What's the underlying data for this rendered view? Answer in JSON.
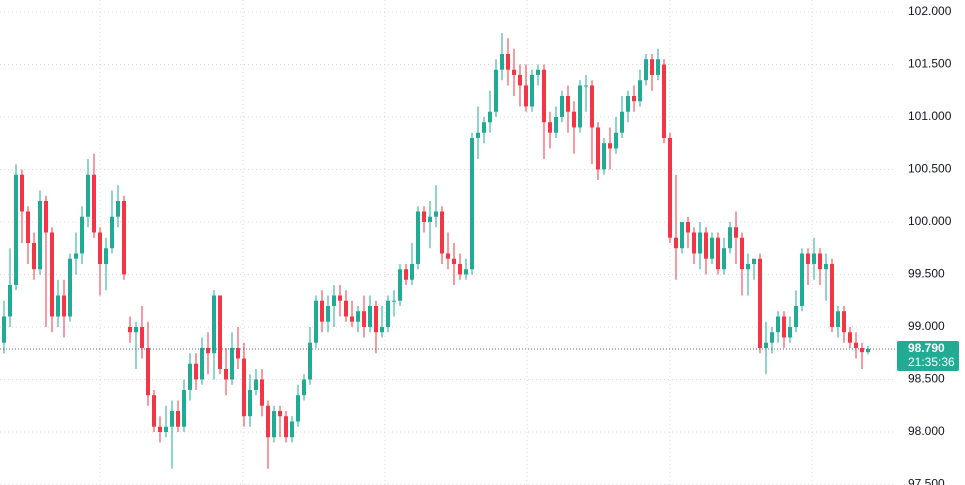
{
  "chart_data": {
    "type": "candlestick",
    "up_color": "#22ab94",
    "down_color": "#f23645",
    "grid": true,
    "ylim": [
      97.495,
      102.114
    ],
    "yticks": [
      {
        "value": 97.5,
        "label": "97.500"
      },
      {
        "value": 98,
        "label": "98.000"
      },
      {
        "value": 98.5,
        "label": "98.500"
      },
      {
        "value": 99,
        "label": "99.000"
      },
      {
        "value": 99.5,
        "label": "99.500"
      },
      {
        "value": 100,
        "label": "100.000"
      },
      {
        "value": 100.5,
        "label": "100.500"
      },
      {
        "value": 101,
        "label": "101.000"
      },
      {
        "value": 101.5,
        "label": "101.500"
      },
      {
        "value": 102,
        "label": "102.000"
      }
    ],
    "last_price": {
      "value": 98.79,
      "label": "98.790"
    },
    "countdown": "21:35:36",
    "open": [
      98.85,
      99.1,
      99.4,
      100.45,
      100.1,
      99.8,
      99.55,
      100.2,
      99.9,
      99.1,
      99.3,
      99.1,
      99.65,
      99.7,
      100.05,
      100.45,
      99.9,
      99.6,
      99.75,
      100.05,
      100.2,
      99.0,
      98.95,
      99.0,
      98.8,
      98.35,
      98.05,
      98.0,
      98.05,
      98.2,
      98.05,
      98.4,
      98.65,
      98.5,
      98.8,
      98.75,
      99.3,
      98.6,
      98.5,
      98.8,
      98.7,
      98.15,
      98.4,
      98.5,
      98.25,
      97.95,
      98.2,
      98.15,
      97.95,
      98.1,
      98.35,
      98.5,
      98.85,
      99.25,
      99.05,
      99.2,
      99.3,
      99.25,
      99.1,
      99.05,
      99.15,
      99.0,
      99.2,
      98.95,
      99.0,
      99.25,
      99.25,
      99.55,
      99.45,
      99.6,
      100.1,
      100.0,
      100.05,
      100.1,
      99.7,
      99.65,
      99.6,
      99.5,
      99.55,
      100.8,
      100.85,
      100.95,
      101.05,
      101.45,
      101.6,
      101.45,
      101.4,
      101.3,
      101.1,
      101.4,
      101.45,
      100.95,
      100.85,
      101.0,
      101.2,
      101.05,
      100.9,
      101.3,
      101.3,
      100.9,
      100.5,
      100.75,
      100.7,
      100.85,
      101.05,
      101.2,
      101.15,
      101.35,
      101.55,
      101.4,
      101.5,
      100.8,
      99.85,
      99.75,
      100.0,
      99.9,
      99.7,
      99.9,
      99.65,
      99.85,
      99.55,
      99.75,
      99.95,
      99.85,
      99.55,
      99.6,
      99.65,
      98.8,
      98.85,
      98.95,
      99.1,
      98.9,
      99.0,
      99.2,
      99.7,
      99.6,
      99.7,
      99.55,
      99.6,
      99.0,
      99.15,
      98.95,
      98.85,
      98.8,
      98.76
    ],
    "high": [
      99.25,
      99.75,
      100.55,
      100.5,
      100.15,
      99.9,
      100.3,
      100.25,
      99.95,
      99.45,
      99.45,
      99.7,
      99.9,
      100.15,
      100.6,
      100.65,
      99.95,
      99.85,
      100.3,
      100.35,
      100.25,
      99.1,
      99.05,
      99.2,
      99.05,
      98.4,
      98.15,
      98.25,
      98.3,
      98.3,
      98.5,
      98.75,
      98.75,
      98.9,
      98.95,
      99.35,
      99.3,
      98.8,
      98.95,
      99.0,
      98.85,
      98.55,
      98.6,
      98.6,
      98.3,
      98.25,
      98.25,
      98.2,
      98.15,
      98.45,
      98.55,
      99.0,
      99.3,
      99.35,
      99.3,
      99.4,
      99.4,
      99.35,
      99.25,
      99.2,
      99.3,
      99.3,
      99.25,
      99.2,
      99.3,
      99.35,
      99.6,
      99.6,
      99.8,
      100.15,
      100.15,
      100.2,
      100.35,
      100.15,
      99.9,
      99.8,
      99.7,
      99.65,
      100.85,
      101.1,
      101.0,
      101.25,
      101.55,
      101.8,
      101.75,
      101.65,
      101.5,
      101.5,
      101.45,
      101.5,
      101.5,
      101.05,
      101.1,
      101.25,
      101.3,
      101.15,
      101.35,
      101.4,
      101.35,
      100.95,
      100.8,
      100.9,
      101.0,
      101.2,
      101.25,
      101.3,
      101.45,
      101.6,
      101.6,
      101.65,
      101.55,
      100.85,
      100.45,
      100.0,
      100.05,
      99.95,
      100.0,
      99.95,
      99.9,
      99.9,
      99.85,
      100.0,
      100.1,
      99.9,
      99.7,
      99.65,
      99.7,
      99.05,
      99.0,
      99.15,
      99.15,
      99.1,
      99.35,
      99.75,
      99.75,
      99.85,
      99.75,
      99.7,
      99.65,
      99.2,
      99.2,
      99.0,
      98.95,
      98.85,
      98.82
    ],
    "low": [
      98.75,
      99.0,
      99.35,
      99.8,
      99.6,
      99.45,
      99.5,
      99.0,
      98.95,
      99.0,
      98.9,
      99.05,
      99.5,
      99.6,
      99.95,
      99.85,
      99.3,
      99.35,
      99.7,
      99.95,
      99.45,
      98.85,
      98.6,
      98.7,
      98.25,
      98.0,
      97.9,
      97.95,
      97.65,
      98.0,
      98.0,
      98.3,
      98.4,
      98.45,
      98.55,
      98.5,
      98.55,
      98.35,
      98.45,
      98.6,
      98.05,
      98.05,
      98.35,
      98.15,
      97.65,
      97.9,
      97.95,
      97.9,
      97.9,
      98.05,
      98.3,
      98.45,
      98.8,
      98.95,
      98.95,
      99.0,
      99.1,
      99.05,
      99.0,
      98.95,
      98.9,
      98.95,
      98.75,
      98.9,
      98.95,
      99.1,
      99.2,
      99.4,
      99.4,
      99.55,
      99.9,
      99.75,
      99.95,
      99.6,
      99.55,
      99.4,
      99.45,
      99.45,
      99.5,
      100.6,
      100.75,
      100.85,
      101.0,
      101.35,
      101.3,
      101.2,
      101.1,
      101.05,
      101.05,
      101.3,
      100.6,
      100.7,
      100.8,
      100.95,
      100.85,
      100.65,
      100.85,
      101.05,
      100.55,
      100.4,
      100.45,
      100.5,
      100.65,
      100.8,
      100.95,
      101.05,
      101.1,
      101.3,
      101.25,
      101.35,
      100.75,
      99.8,
      99.45,
      99.7,
      99.75,
      99.6,
      99.55,
      99.5,
      99.6,
      99.5,
      99.5,
      99.7,
      99.6,
      99.3,
      99.3,
      99.45,
      98.75,
      98.55,
      98.75,
      98.85,
      98.8,
      98.85,
      98.95,
      99.15,
      99.4,
      99.45,
      99.4,
      99.25,
      98.95,
      98.9,
      98.85,
      98.8,
      98.7,
      98.6,
      98.74
    ],
    "close": [
      99.1,
      99.4,
      100.45,
      100.1,
      99.8,
      99.55,
      100.2,
      99.9,
      99.1,
      99.3,
      99.1,
      99.65,
      99.7,
      100.05,
      100.45,
      99.9,
      99.6,
      99.75,
      100.05,
      100.2,
      99.5,
      98.95,
      99.0,
      98.8,
      98.35,
      98.05,
      98.0,
      98.05,
      98.2,
      98.05,
      98.4,
      98.65,
      98.5,
      98.8,
      98.75,
      99.3,
      98.6,
      98.5,
      98.8,
      98.7,
      98.15,
      98.4,
      98.5,
      98.25,
      97.95,
      98.2,
      98.15,
      97.95,
      98.1,
      98.35,
      98.5,
      98.85,
      99.25,
      99.05,
      99.2,
      99.3,
      99.25,
      99.1,
      99.05,
      99.15,
      99.0,
      99.2,
      98.95,
      99.0,
      99.25,
      99.25,
      99.55,
      99.45,
      99.6,
      100.1,
      100.0,
      100.05,
      100.1,
      99.7,
      99.65,
      99.6,
      99.5,
      99.55,
      100.8,
      100.85,
      100.95,
      101.05,
      101.45,
      101.6,
      101.45,
      101.4,
      101.3,
      101.1,
      101.4,
      101.45,
      100.95,
      100.85,
      101.0,
      101.2,
      101.05,
      100.9,
      101.3,
      101.3,
      100.9,
      100.5,
      100.75,
      100.7,
      100.85,
      101.05,
      101.2,
      101.15,
      101.35,
      101.55,
      101.4,
      101.55,
      100.8,
      99.85,
      99.75,
      100.0,
      99.9,
      99.7,
      99.9,
      99.65,
      99.85,
      99.55,
      99.75,
      99.95,
      99.85,
      99.55,
      99.6,
      99.65,
      98.8,
      98.85,
      98.95,
      99.1,
      98.9,
      99.0,
      99.2,
      99.7,
      99.6,
      99.7,
      99.55,
      99.6,
      99.0,
      99.15,
      98.95,
      98.85,
      98.8,
      98.76,
      98.79
    ]
  }
}
